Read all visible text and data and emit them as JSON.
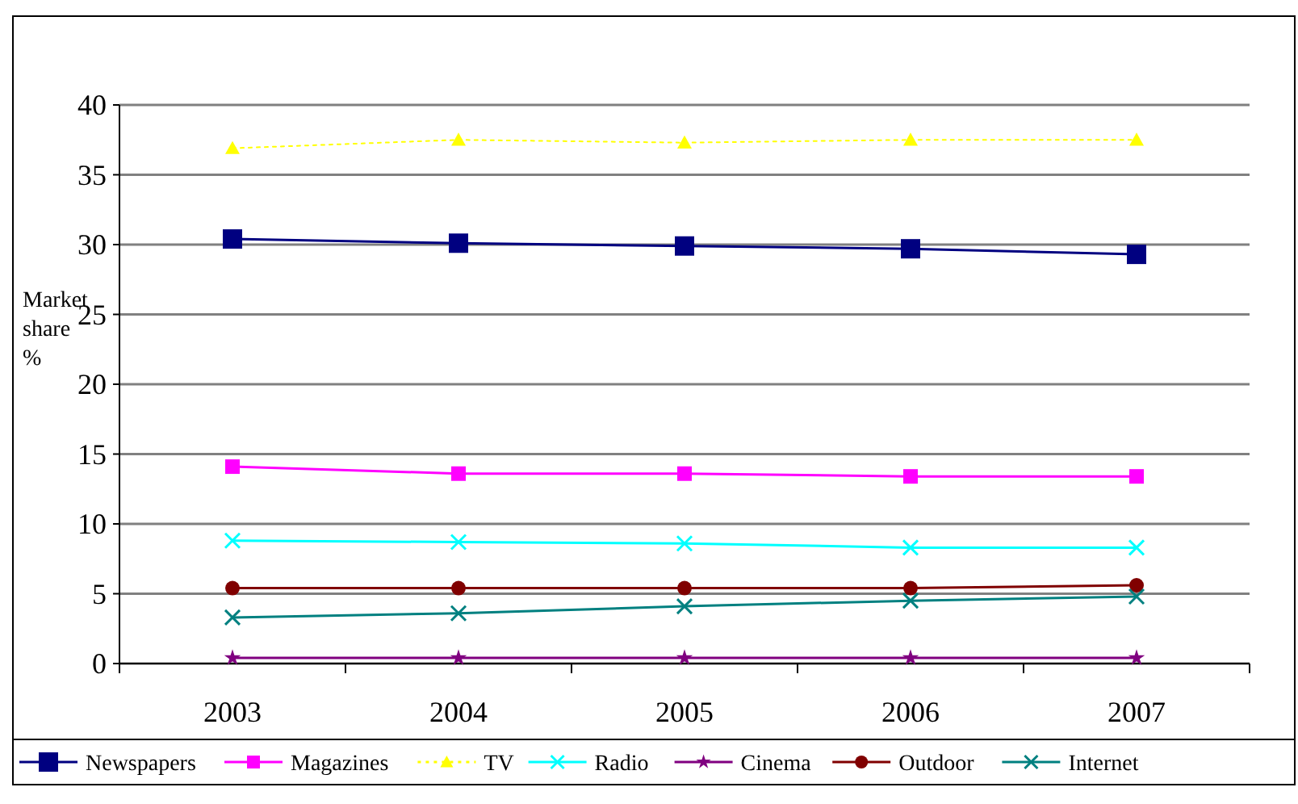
{
  "chart_data": {
    "type": "line",
    "ylabel": "Market share %",
    "categories": [
      "2003",
      "2004",
      "2005",
      "2006",
      "2007"
    ],
    "series": [
      {
        "name": "Newspapers",
        "color": "#000080",
        "marker": "square",
        "values": [
          30.4,
          30.1,
          29.9,
          29.7,
          29.3
        ]
      },
      {
        "name": "Magazines",
        "color": "#ff00ff",
        "marker": "square",
        "values": [
          14.1,
          13.6,
          13.6,
          13.4,
          13.4
        ]
      },
      {
        "name": "TV",
        "color": "#ffff00",
        "marker": "triangle",
        "line_style": "dotted",
        "values": [
          36.9,
          37.5,
          37.3,
          37.5,
          37.5
        ]
      },
      {
        "name": "Radio",
        "color": "#00ffff",
        "marker": "cross",
        "values": [
          8.8,
          8.7,
          8.6,
          8.3,
          8.3
        ]
      },
      {
        "name": "Cinema",
        "color": "#800080",
        "marker": "star",
        "values": [
          0.4,
          0.4,
          0.4,
          0.4,
          0.4
        ]
      },
      {
        "name": "Outdoor",
        "color": "#800000",
        "marker": "circle",
        "values": [
          5.4,
          5.4,
          5.4,
          5.4,
          5.6
        ]
      },
      {
        "name": "Internet",
        "color": "#008080",
        "marker": "cross",
        "values": [
          3.3,
          3.6,
          4.1,
          4.5,
          4.8
        ]
      }
    ],
    "ylim": [
      0,
      40
    ],
    "yticks": [
      0,
      5,
      10,
      15,
      20,
      25,
      30,
      35,
      40
    ],
    "grid": "y",
    "legend": "bottom"
  }
}
